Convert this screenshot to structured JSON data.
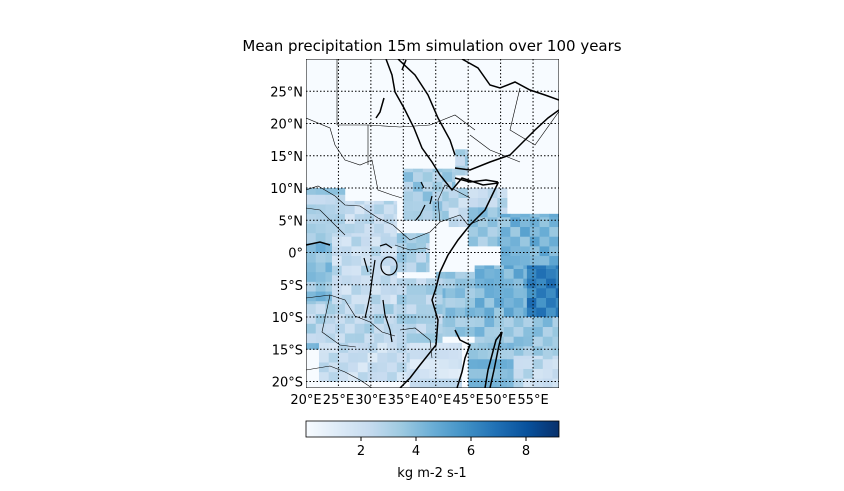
{
  "chart_data": {
    "type": "heatmap",
    "title": "Mean precipitation 15m simulation over 100 years",
    "colormap": "Blues",
    "lon_range": [
      20,
      59
    ],
    "lat_range": [
      -21,
      30
    ],
    "xticks": [
      {
        "value": 20,
        "label": "20°E"
      },
      {
        "value": 25,
        "label": "25°E"
      },
      {
        "value": 30,
        "label": "30°E"
      },
      {
        "value": 35,
        "label": "35°E"
      },
      {
        "value": 40,
        "label": "40°E"
      },
      {
        "value": 45,
        "label": "45°E"
      },
      {
        "value": 50,
        "label": "50°E"
      },
      {
        "value": 55,
        "label": "55°E"
      }
    ],
    "yticks": [
      {
        "value": 25,
        "label": "25°N"
      },
      {
        "value": 20,
        "label": "20°N"
      },
      {
        "value": 15,
        "label": "15°N"
      },
      {
        "value": 10,
        "label": "10°N"
      },
      {
        "value": 5,
        "label": "5°N"
      },
      {
        "value": 0,
        "label": "0°"
      },
      {
        "value": -5,
        "label": "5°S"
      },
      {
        "value": -10,
        "label": "10°S"
      },
      {
        "value": -15,
        "label": "15°S"
      },
      {
        "value": -20,
        "label": "20°S"
      }
    ],
    "grid": true,
    "colorbar": {
      "vmin": 0,
      "vmax": 9.2,
      "ticks": [
        2,
        4,
        6,
        8
      ],
      "label": "kg m-2 s-1",
      "location": "bottom"
    },
    "grid_cell_deg": 1.5,
    "regions": [
      {
        "lon": [
          20,
          26
        ],
        "lat": [
          3,
          10
        ],
        "value": 3.0
      },
      {
        "lon": [
          26,
          34
        ],
        "lat": [
          3,
          8
        ],
        "value": 2.3
      },
      {
        "lon": [
          20,
          24
        ],
        "lat": [
          -15,
          3
        ],
        "value": 3.8
      },
      {
        "lon": [
          24,
          34
        ],
        "lat": [
          -8,
          3
        ],
        "value": 2.2
      },
      {
        "lon": [
          34,
          39
        ],
        "lat": [
          -3,
          3
        ],
        "value": 3.2
      },
      {
        "lon": [
          20,
          34
        ],
        "lat": [
          -14,
          -8
        ],
        "value": 2.6
      },
      {
        "lon": [
          22,
          37
        ],
        "lat": [
          -20,
          -14
        ],
        "value": 2.2
      },
      {
        "lon": [
          35,
          43
        ],
        "lat": [
          5,
          13
        ],
        "value": 3.2
      },
      {
        "lon": [
          43,
          45
        ],
        "lat": [
          12,
          16
        ],
        "value": 3.0
      },
      {
        "lon": [
          42,
          51
        ],
        "lat": [
          4,
          10
        ],
        "value": 2.4
      },
      {
        "lon": [
          45,
          50
        ],
        "lat": [
          1,
          7
        ],
        "value": 3.6
      },
      {
        "lon": [
          50,
          59
        ],
        "lat": [
          -2,
          6
        ],
        "value": 4.3
      },
      {
        "lon": [
          54,
          59
        ],
        "lat": [
          -10,
          -2
        ],
        "value": 6.4
      },
      {
        "lon": [
          46,
          54
        ],
        "lat": [
          -10,
          -2
        ],
        "value": 4.4
      },
      {
        "lon": [
          40,
          46
        ],
        "lat": [
          -13,
          -3
        ],
        "value": 3.6
      },
      {
        "lon": [
          34,
          41
        ],
        "lat": [
          -14,
          -4
        ],
        "value": 3.0
      },
      {
        "lon": [
          46,
          59
        ],
        "lat": [
          -16,
          -10
        ],
        "value": 3.5
      },
      {
        "lon": [
          45,
          52
        ],
        "lat": [
          -21,
          -14
        ],
        "value": 4.0
      },
      {
        "lon": [
          52,
          59
        ],
        "lat": [
          -21,
          -16
        ],
        "value": 2.2
      },
      {
        "lon": [
          36,
          44
        ],
        "lat": [
          -21,
          -14
        ],
        "value": 1.8
      }
    ]
  }
}
